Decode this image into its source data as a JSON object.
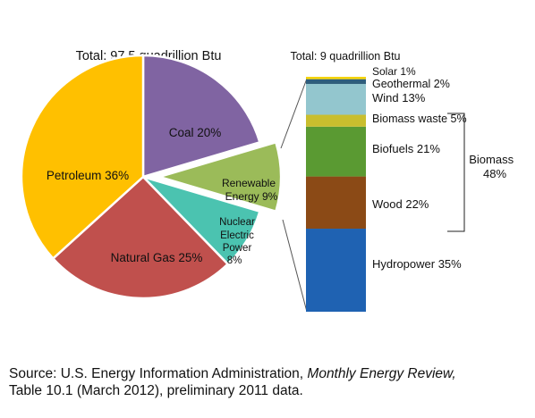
{
  "chart_data": [
    {
      "type": "pie",
      "title": "Total:  97.5 quadrillion Btu",
      "slices": [
        {
          "label": "Coal 20%",
          "value": 20,
          "color": "#8064A2"
        },
        {
          "label": "Renewable Energy 9%",
          "value": 9,
          "color": "#9BBB59",
          "exploded": true
        },
        {
          "label": "Nuclear Electric Power 8%",
          "value": 8,
          "color": "#4BC3B0"
        },
        {
          "label": "Natural Gas 25%",
          "value": 25,
          "color": "#C0504D"
        },
        {
          "label": "Petroleum 36%",
          "value": 36,
          "color": "#FFC000"
        }
      ]
    },
    {
      "type": "bar",
      "stacked": true,
      "title": "Total:  9 quadrillion Btu",
      "segments": [
        {
          "label": "Hydropower  35%",
          "value": 35,
          "color": "#1F62B2"
        },
        {
          "label": "Wood  22%",
          "value": 22,
          "color": "#8B4A16"
        },
        {
          "label": "Biofuels  21%",
          "value": 21,
          "color": "#5A9A32"
        },
        {
          "label": "Biomass waste 5%",
          "value": 5,
          "color": "#C9BE2E"
        },
        {
          "label": "Wind  13%",
          "value": 13,
          "color": "#93C6CE"
        },
        {
          "label": "Geothermal  2%",
          "value": 2,
          "color": "#2E5D7B"
        },
        {
          "label": "Solar  1%",
          "value": 1,
          "color": "#F5D40A"
        }
      ],
      "bracket_label": "Biomass 48%"
    }
  ],
  "source": {
    "prefix": "Source: U.S. Energy Information Administration, ",
    "italic": "Monthly Energy Review,",
    "line2": "Table 10.1 (March 2012), preliminary 2011 data."
  }
}
